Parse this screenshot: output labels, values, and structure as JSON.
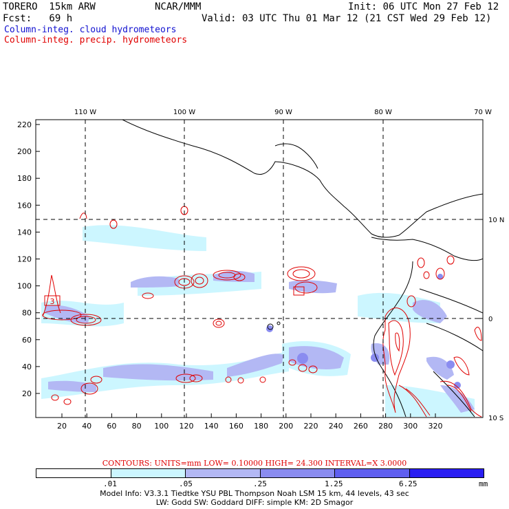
{
  "header": {
    "model": "TORERO  15km ARW",
    "org": "NCAR/MMM",
    "init": "Init: 06 UTC Mon 27 Feb 12",
    "fcst": "Fcst:   69 h",
    "valid": "Valid: 03 UTC Thu 01 Mar 12 (21 CST Wed 29 Feb 12)",
    "field_cloud": "Column-integ. cloud hydrometeors",
    "field_precip": "Column-integ. precip. hydrometeors"
  },
  "colors": {
    "cloud_title": "#1010d0",
    "precip_title": "#e00000",
    "shade": [
      "#ffffff",
      "#ccf6ff",
      "#b3b8f4",
      "#8a8cf0",
      "#5f5ff0",
      "#2a1ef2"
    ],
    "precip_contour": "#e00000"
  },
  "axes": {
    "x_ticks": [
      "20",
      "40",
      "60",
      "80",
      "100",
      "120",
      "140",
      "160",
      "180",
      "200",
      "220",
      "240",
      "260",
      "280",
      "300",
      "320"
    ],
    "y_ticks": [
      "20",
      "40",
      "60",
      "80",
      "100",
      "120",
      "140",
      "160",
      "180",
      "200",
      "220"
    ],
    "lon_labels": [
      "110 W",
      "100 W",
      "90 W",
      "80 W",
      "70 W"
    ],
    "lat_labels": [
      "10 N",
      "0",
      "10 S"
    ]
  },
  "annotations": {
    "contour_label": "3"
  },
  "contours_text": "CONTOURS:  UNITS=mm  LOW= 0.10000     HIGH=  24.300      INTERVAL=X  3.0000",
  "legend": {
    "labels": [
      ".01",
      ".05",
      ".25",
      "1.25",
      "6.25"
    ],
    "units": "mm"
  },
  "model_info": {
    "line1": "Model Info: V3.3.1    Tiedtke YSU PBL  Thompson      Noah LSM  15 km,   44 levels,    43 sec",
    "line2": "LW: Godd SW: Goddard DIFF: simple KM: 2D Smagor"
  }
}
